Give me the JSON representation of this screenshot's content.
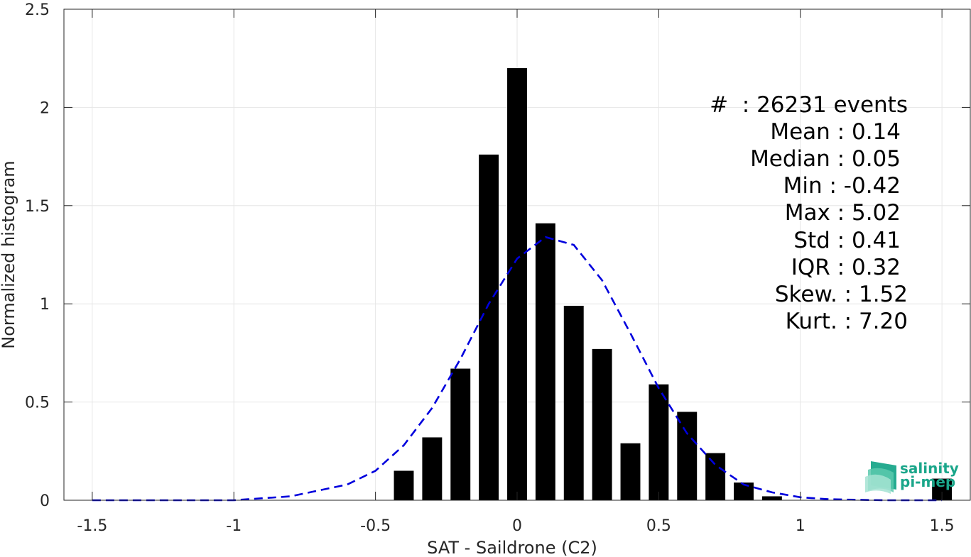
{
  "chart_data": {
    "type": "bar",
    "xlabel": "SAT - Saildrone (C2)",
    "ylabel": "Normalized histogram",
    "xlim": [
      -1.6,
      1.6
    ],
    "ylim": [
      0,
      2.5
    ],
    "xticks": [
      -1.5,
      -1,
      -0.5,
      0,
      0.5,
      1,
      1.5
    ],
    "xtick_labels": [
      "-1.5",
      "-1",
      "-0.5",
      "0",
      "0.5",
      "1",
      "1.5"
    ],
    "yticks": [
      0,
      0.5,
      1,
      1.5,
      2,
      2.5
    ],
    "ytick_labels": [
      "0",
      "0.5",
      "1",
      "1.5",
      "2",
      "2.5"
    ],
    "grid": true,
    "bar_width": 0.07,
    "bar_color": "#000000",
    "bars": [
      {
        "x": -0.4,
        "value": 0.15
      },
      {
        "x": -0.3,
        "value": 0.32
      },
      {
        "x": -0.2,
        "value": 0.67
      },
      {
        "x": -0.1,
        "value": 1.76
      },
      {
        "x": 0.0,
        "value": 2.2
      },
      {
        "x": 0.1,
        "value": 1.41
      },
      {
        "x": 0.2,
        "value": 0.99
      },
      {
        "x": 0.3,
        "value": 0.77
      },
      {
        "x": 0.4,
        "value": 0.29
      },
      {
        "x": 0.5,
        "value": 0.59
      },
      {
        "x": 0.6,
        "value": 0.45
      },
      {
        "x": 0.7,
        "value": 0.24
      },
      {
        "x": 0.8,
        "value": 0.09
      },
      {
        "x": 0.9,
        "value": 0.02
      },
      {
        "x": 1.5,
        "value": 0.11
      }
    ],
    "fit_curve": {
      "style": "dashed",
      "color": "#0000dd",
      "x": [
        -1.5,
        -1.4,
        -1.3,
        -1.2,
        -1.1,
        -1.0,
        -0.9,
        -0.8,
        -0.7,
        -0.6,
        -0.5,
        -0.4,
        -0.3,
        -0.2,
        -0.1,
        0.0,
        0.1,
        0.2,
        0.3,
        0.4,
        0.5,
        0.6,
        0.7,
        0.8,
        0.9,
        1.0,
        1.1,
        1.2,
        1.3,
        1.4,
        1.5
      ],
      "y": [
        0.0,
        0.0,
        0.0,
        0.0,
        0.0,
        0.0,
        0.01,
        0.02,
        0.05,
        0.08,
        0.15,
        0.28,
        0.47,
        0.72,
        1.0,
        1.23,
        1.34,
        1.3,
        1.12,
        0.85,
        0.57,
        0.34,
        0.18,
        0.08,
        0.04,
        0.015,
        0.005,
        0.002,
        0.0,
        0.0,
        0.0
      ]
    },
    "annotations": [
      "#  : 26231 events",
      "Mean : 0.14",
      "Median : 0.05",
      "Min : -0.42",
      "Max : 5.02",
      "Std : 0.41",
      "IQR : 0.32",
      "Skew. : 1.52",
      "Kurt. : 7.20"
    ]
  },
  "logo": {
    "line1": "salinity",
    "line2": "pi-mep",
    "color": "#1aa68a"
  }
}
